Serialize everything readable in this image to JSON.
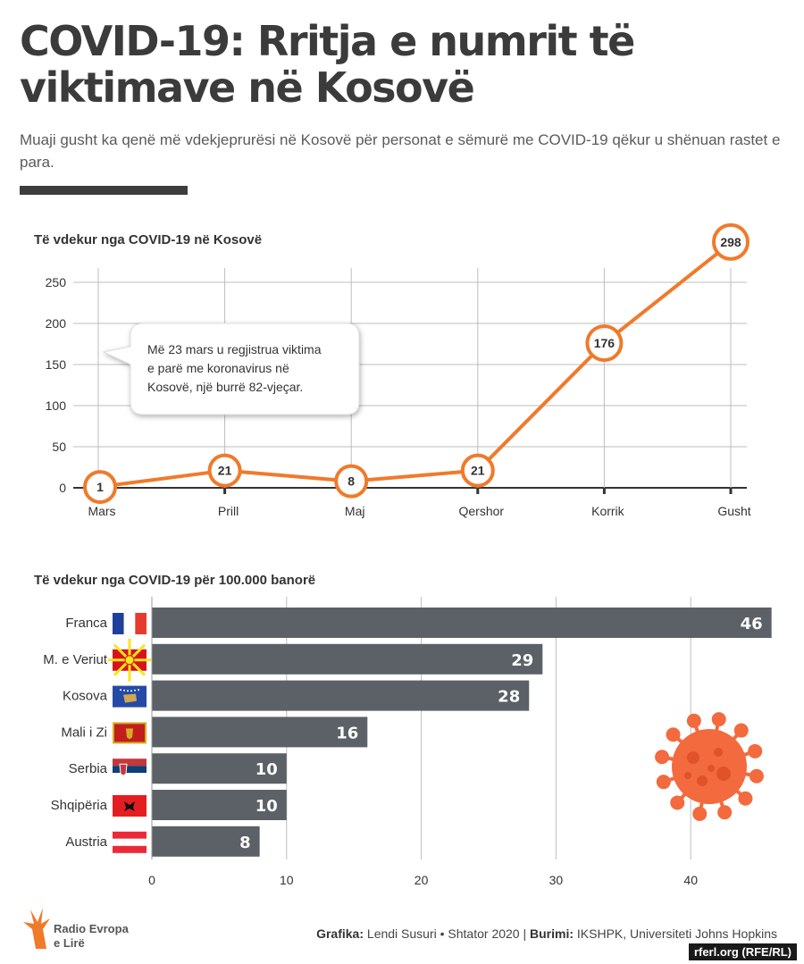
{
  "header": {
    "title": "COVID-19: Rritja e numrit të viktimave në Kosovë",
    "subtitle": "Muaji gusht ka qenë më vdekjeprurësi në Kosovë për personat e sëmurë me COVID-19 qëkur u shënuan rastet e para."
  },
  "colors": {
    "line": "#f07a2b",
    "bar": "#5b6166",
    "grid": "#bdbdbd",
    "text": "#3a3a3a",
    "virus": "#f26a3d"
  },
  "chart_data": [
    {
      "type": "line",
      "title": "Të vdekur nga COVID-19 në Kosovë",
      "categories": [
        "Mars",
        "Prill",
        "Maj",
        "Qershor",
        "Korrik",
        "Gusht"
      ],
      "values": [
        1,
        21,
        8,
        21,
        176,
        298
      ],
      "value_labels": [
        "1",
        "21",
        "8",
        "21",
        "176",
        "298"
      ],
      "yticks": [
        0,
        50,
        100,
        150,
        200,
        250
      ],
      "ylim": [
        0,
        300
      ],
      "grid": true,
      "annotation": "Më 23 mars u regjistrua viktima e parë me koronavirus në Kosovë, një burrë 82-vjeçar."
    },
    {
      "type": "bar",
      "title": "Të vdekur nga COVID-19 për 100.000 banorë",
      "orientation": "horizontal",
      "categories": [
        "Franca",
        "M. e Veriut",
        "Kosova",
        "Mali i Zi",
        "Serbia",
        "Shqipëria",
        "Austria"
      ],
      "values": [
        46,
        29,
        28,
        16,
        10,
        10,
        8
      ],
      "value_labels": [
        "46",
        "29",
        "28",
        "16",
        "10",
        "10",
        "8"
      ],
      "xticks": [
        "0",
        "10",
        "20",
        "30",
        "40"
      ],
      "xlim": [
        0,
        46
      ],
      "grid": true,
      "flags": [
        "france-flag-icon",
        "north-macedonia-flag-icon",
        "kosovo-flag-icon",
        "montenegro-flag-icon",
        "serbia-flag-icon",
        "albania-flag-icon",
        "austria-flag-icon"
      ]
    }
  ],
  "footer": {
    "logo_line1": "Radio Evropa",
    "logo_line2": "e Lirë",
    "credit_label1": "Grafika:",
    "credit_text1": "Lendi Susuri • Shtator 2020 |",
    "credit_label2": "Burimi:",
    "credit_text2": "IKSHPK, Universiteti Johns Hopkins",
    "source_tag": "rferl.org (RFE/RL)"
  }
}
